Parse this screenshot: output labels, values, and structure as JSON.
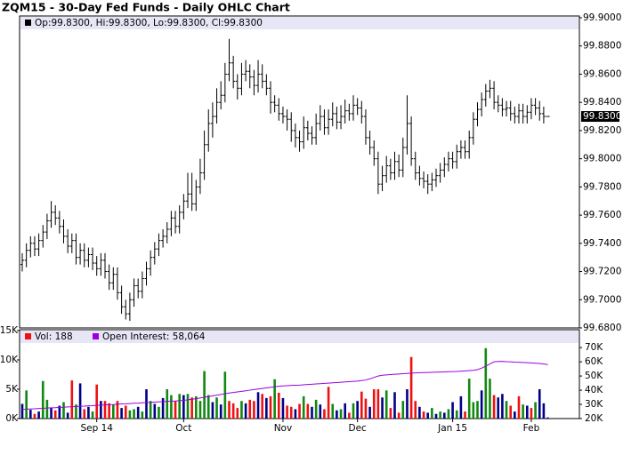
{
  "chart_data": {
    "type": "ohlc",
    "title": "ZQM15 - 30-Day Fed Funds - Daily OHLC Chart",
    "legend_text": "Op:99.8300, Hi:99.8300, Lo:99.8300, Cl:99.8300",
    "color": "#000000",
    "categories": [
      null,
      null,
      null,
      null,
      null,
      null,
      null,
      null,
      null,
      null,
      null,
      null,
      null,
      null,
      null,
      null,
      null,
      null,
      "Sep 14",
      null,
      null,
      null,
      null,
      null,
      null,
      null,
      null,
      null,
      null,
      null,
      null,
      null,
      null,
      null,
      null,
      null,
      null,
      null,
      null,
      "Oct",
      null,
      null,
      null,
      null,
      null,
      null,
      null,
      null,
      null,
      null,
      null,
      null,
      null,
      null,
      null,
      null,
      null,
      null,
      null,
      null,
      null,
      null,
      null,
      "Nov",
      null,
      null,
      null,
      null,
      null,
      null,
      null,
      null,
      null,
      null,
      null,
      null,
      null,
      null,
      null,
      null,
      null,
      "Dec",
      null,
      null,
      null,
      null,
      null,
      null,
      null,
      null,
      null,
      null,
      null,
      null,
      null,
      null,
      null,
      null,
      null,
      null,
      null,
      null,
      null,
      null,
      "Jan 15",
      null,
      null,
      null,
      null,
      null,
      null,
      null,
      null,
      null,
      null,
      null,
      null,
      null,
      null,
      null,
      null,
      null,
      null,
      "Feb",
      null,
      null,
      null,
      null
    ],
    "open": [
      99.725,
      99.728,
      99.735,
      99.74,
      99.736,
      99.742,
      99.748,
      99.756,
      99.762,
      99.758,
      99.752,
      99.745,
      99.738,
      99.742,
      99.73,
      99.735,
      99.728,
      99.732,
      99.726,
      99.722,
      99.728,
      99.72,
      99.712,
      99.718,
      99.705,
      99.695,
      99.69,
      99.7,
      99.71,
      99.706,
      99.715,
      99.722,
      99.73,
      99.736,
      99.742,
      99.745,
      99.75,
      99.758,
      99.752,
      99.762,
      99.77,
      99.775,
      99.768,
      99.78,
      99.79,
      99.81,
      99.825,
      99.83,
      99.84,
      99.845,
      99.86,
      99.868,
      99.855,
      99.85,
      99.86,
      99.862,
      99.858,
      99.852,
      99.86,
      99.855,
      99.85,
      99.84,
      99.838,
      99.832,
      99.83,
      99.828,
      99.82,
      99.815,
      99.812,
      99.822,
      99.818,
      99.815,
      99.825,
      99.83,
      99.822,
      99.828,
      99.832,
      99.826,
      99.83,
      99.834,
      99.832,
      99.838,
      99.836,
      99.83,
      99.815,
      99.808,
      99.8,
      99.782,
      99.788,
      99.795,
      99.79,
      99.798,
      99.792,
      99.808,
      99.825,
      99.8,
      99.79,
      99.786,
      99.784,
      99.782,
      99.785,
      99.788,
      99.792,
      99.796,
      99.8,
      99.798,
      99.805,
      99.808,
      99.805,
      99.815,
      99.828,
      99.835,
      99.842,
      99.848,
      99.85,
      99.84,
      99.838,
      99.835,
      99.836,
      99.832,
      99.83,
      99.834,
      99.83,
      99.833,
      99.838,
      99.836,
      99.832,
      99.83
    ],
    "high": [
      99.733,
      99.74,
      99.745,
      99.745,
      99.747,
      99.753,
      99.761,
      99.77,
      99.767,
      99.763,
      99.757,
      99.75,
      99.747,
      99.747,
      99.74,
      99.74,
      99.737,
      99.737,
      99.731,
      99.733,
      99.733,
      99.725,
      99.723,
      99.723,
      99.71,
      99.7,
      99.705,
      99.715,
      99.715,
      99.72,
      99.727,
      99.735,
      99.741,
      99.747,
      99.75,
      99.755,
      99.763,
      99.763,
      99.767,
      99.775,
      99.79,
      99.79,
      99.785,
      99.8,
      99.82,
      99.835,
      99.84,
      99.85,
      99.855,
      99.868,
      99.885,
      99.873,
      99.86,
      99.868,
      99.87,
      99.867,
      99.863,
      99.87,
      99.867,
      99.86,
      99.855,
      99.845,
      99.843,
      99.837,
      99.835,
      99.833,
      99.825,
      99.82,
      99.83,
      99.827,
      99.823,
      99.832,
      99.838,
      99.835,
      99.835,
      99.84,
      99.837,
      99.838,
      99.842,
      99.839,
      99.845,
      99.843,
      99.841,
      99.835,
      99.82,
      99.813,
      99.805,
      99.795,
      99.802,
      99.8,
      99.805,
      99.803,
      99.815,
      99.845,
      99.83,
      99.805,
      99.795,
      99.791,
      99.789,
      99.79,
      99.793,
      99.797,
      99.801,
      99.805,
      99.805,
      99.81,
      99.813,
      99.813,
      99.82,
      99.833,
      99.84,
      99.847,
      99.853,
      99.856,
      99.855,
      99.845,
      99.843,
      99.841,
      99.841,
      99.837,
      99.839,
      99.839,
      99.838,
      99.843,
      99.843,
      99.841,
      99.837,
      99.83
    ],
    "low": [
      99.72,
      99.723,
      99.73,
      99.731,
      99.731,
      99.737,
      99.743,
      99.751,
      99.753,
      99.747,
      99.74,
      99.733,
      99.733,
      99.725,
      99.725,
      99.723,
      99.723,
      99.721,
      99.717,
      99.717,
      99.715,
      99.707,
      99.707,
      99.7,
      99.69,
      99.686,
      99.685,
      99.695,
      99.701,
      99.701,
      99.71,
      99.717,
      99.725,
      99.731,
      99.737,
      99.74,
      99.745,
      99.747,
      99.747,
      99.757,
      99.765,
      99.763,
      99.763,
      99.775,
      99.785,
      99.805,
      99.815,
      99.825,
      99.835,
      99.84,
      99.855,
      99.85,
      99.842,
      99.845,
      99.855,
      99.85,
      99.845,
      99.847,
      99.85,
      99.845,
      99.832,
      99.833,
      99.827,
      99.825,
      99.82,
      99.812,
      99.808,
      99.805,
      99.807,
      99.813,
      99.81,
      99.81,
      99.82,
      99.817,
      99.817,
      99.823,
      99.821,
      99.821,
      99.825,
      99.827,
      99.827,
      99.831,
      99.825,
      99.81,
      99.803,
      99.795,
      99.775,
      99.777,
      99.783,
      99.785,
      99.785,
      99.787,
      99.787,
      99.803,
      99.795,
      99.785,
      99.781,
      99.779,
      99.775,
      99.777,
      99.78,
      99.783,
      99.787,
      99.791,
      99.793,
      99.793,
      99.8,
      99.8,
      99.8,
      99.81,
      99.823,
      99.83,
      99.837,
      99.843,
      99.835,
      99.833,
      99.83,
      99.83,
      99.827,
      99.825,
      99.825,
      99.825,
      99.825,
      99.828,
      99.831,
      99.827,
      99.825,
      99.83
    ],
    "close": [
      99.728,
      99.735,
      99.74,
      99.736,
      99.742,
      99.748,
      99.756,
      99.762,
      99.758,
      99.752,
      99.745,
      99.738,
      99.742,
      99.73,
      99.735,
      99.728,
      99.732,
      99.726,
      99.722,
      99.728,
      99.72,
      99.712,
      99.718,
      99.705,
      99.695,
      99.69,
      99.7,
      99.71,
      99.706,
      99.715,
      99.722,
      99.73,
      99.736,
      99.742,
      99.745,
      99.75,
      99.758,
      99.752,
      99.762,
      99.77,
      99.775,
      99.768,
      99.78,
      99.79,
      99.81,
      99.825,
      99.83,
      99.84,
      99.845,
      99.86,
      99.868,
      99.855,
      99.85,
      99.86,
      99.862,
      99.858,
      99.852,
      99.86,
      99.855,
      99.85,
      99.84,
      99.838,
      99.832,
      99.83,
      99.828,
      99.82,
      99.815,
      99.812,
      99.822,
      99.818,
      99.815,
      99.825,
      99.83,
      99.822,
      99.828,
      99.832,
      99.826,
      99.83,
      99.834,
      99.832,
      99.838,
      99.836,
      99.83,
      99.815,
      99.808,
      99.8,
      99.782,
      99.788,
      99.795,
      99.79,
      99.798,
      99.792,
      99.808,
      99.825,
      99.8,
      99.79,
      99.786,
      99.784,
      99.782,
      99.785,
      99.788,
      99.792,
      99.796,
      99.8,
      99.798,
      99.805,
      99.808,
      99.805,
      99.815,
      99.828,
      99.835,
      99.842,
      99.848,
      99.85,
      99.84,
      99.838,
      99.835,
      99.836,
      99.832,
      99.83,
      99.834,
      99.83,
      99.833,
      99.838,
      99.836,
      99.832,
      99.83,
      99.83
    ],
    "ylim": [
      99.68,
      99.9
    ],
    "yticks": [
      {
        "value": 99.68,
        "label": "99.6800"
      },
      {
        "value": 99.7,
        "label": "99.7000"
      },
      {
        "value": 99.72,
        "label": "99.7200"
      },
      {
        "value": 99.74,
        "label": "99.7400"
      },
      {
        "value": 99.76,
        "label": "99.7600"
      },
      {
        "value": 99.78,
        "label": "99.7800"
      },
      {
        "value": 99.8,
        "label": "99.8000"
      },
      {
        "value": 99.82,
        "label": "99.8200"
      },
      {
        "value": 99.84,
        "label": "99.8400"
      },
      {
        "value": 99.86,
        "label": "99.8600"
      },
      {
        "value": 99.88,
        "label": "99.8800"
      },
      {
        "value": 99.9,
        "label": "99.9000"
      }
    ],
    "last_price": {
      "value": 99.83,
      "label": "99.8300"
    },
    "grid": false,
    "volume": {
      "legend": "Vol: 188",
      "legend_color": "#ee1111",
      "values": [
        2500,
        4800,
        1500,
        800,
        1200,
        6400,
        3200,
        1800,
        1400,
        2200,
        2800,
        1000,
        6500,
        2400,
        6000,
        1600,
        2000,
        1200,
        5800,
        3000,
        3000,
        2600,
        2400,
        3000,
        1800,
        2200,
        1400,
        1600,
        2000,
        1200,
        5000,
        3000,
        2500,
        2000,
        3500,
        5000,
        4000,
        3000,
        4200,
        4000,
        4200,
        3600,
        3800,
        3000,
        8100,
        4000,
        2800,
        3600,
        2400,
        8000,
        3000,
        2600,
        1800,
        3000,
        2600,
        3200,
        3000,
        4500,
        4200,
        3500,
        3800,
        6700,
        4400,
        3500,
        2200,
        2000,
        1600,
        2500,
        3800,
        2500,
        2000,
        3200,
        2400,
        1600,
        5400,
        2500,
        1400,
        1600,
        2600,
        1000,
        2600,
        3000,
        4600,
        3400,
        2000,
        5000,
        5000,
        3600,
        4800,
        1800,
        4500,
        1000,
        3000,
        5000,
        10500,
        3000,
        2000,
        1200,
        1000,
        1800,
        800,
        1200,
        1000,
        1600,
        2800,
        1400,
        3800,
        1200,
        6800,
        2800,
        3000,
        4800,
        12000,
        6800,
        4000,
        3600,
        4200,
        3000,
        2200,
        1200,
        3800,
        2400,
        2200,
        1800,
        2800,
        5000,
        2600,
        188
      ],
      "colors": [
        "#000088",
        "#118811",
        "#000088",
        "#ee1111",
        "#000088",
        "#118811",
        "#118811",
        "#000088",
        "#ee1111",
        "#000088",
        "#118811",
        "#000088",
        "#ee1111",
        "#118811",
        "#000088",
        "#ee1111",
        "#000088",
        "#118811",
        "#ee1111",
        "#000088",
        "#ee1111",
        "#ee1111",
        "#118811",
        "#ee1111",
        "#000088",
        "#ee1111",
        "#118811",
        "#118811",
        "#000088",
        "#118811",
        "#000088",
        "#118811",
        "#000088",
        "#118811",
        "#000088",
        "#118811",
        "#118811",
        "#ee1111",
        "#118811",
        "#000088",
        "#118811",
        "#ee1111",
        "#118811",
        "#118811",
        "#118811",
        "#118811",
        "#000088",
        "#118811",
        "#000088",
        "#118811",
        "#ee1111",
        "#ee1111",
        "#ee1111",
        "#118811",
        "#000088",
        "#ee1111",
        "#ee1111",
        "#000088",
        "#ee1111",
        "#000088",
        "#ee1111",
        "#118811",
        "#ee1111",
        "#000088",
        "#ee1111",
        "#ee1111",
        "#000088",
        "#ee1111",
        "#118811",
        "#ee1111",
        "#000088",
        "#118811",
        "#000088",
        "#ee1111",
        "#ee1111",
        "#118811",
        "#000088",
        "#118811",
        "#000088",
        "#ee1111",
        "#118811",
        "#000088",
        "#ee1111",
        "#ee1111",
        "#000088",
        "#ee1111",
        "#ee1111",
        "#000088",
        "#118811",
        "#ee1111",
        "#000088",
        "#ee1111",
        "#118811",
        "#000088",
        "#ee1111",
        "#ee1111",
        "#000088",
        "#ee1111",
        "#000088",
        "#118811",
        "#000088",
        "#118811",
        "#000088",
        "#118811",
        "#000088",
        "#118811",
        "#000088",
        "#ee1111",
        "#118811",
        "#118811",
        "#118811",
        "#000088",
        "#118811",
        "#118811",
        "#ee1111",
        "#000088",
        "#000088",
        "#118811",
        "#ee1111",
        "#000088",
        "#ee1111",
        "#118811",
        "#000088",
        "#ee1111",
        "#118811",
        "#000088",
        "#000088",
        "#000088"
      ],
      "ylim": [
        0,
        15000
      ],
      "yticks": [
        {
          "value": 0,
          "label": "0K"
        },
        {
          "value": 5000,
          "label": "5K"
        },
        {
          "value": 10000,
          "label": "10K"
        },
        {
          "value": 15000,
          "label": "15K"
        }
      ]
    },
    "open_interest": {
      "legend": "Open Interest: 58,064",
      "color": "#9900dd",
      "values": [
        26500,
        26600,
        26800,
        26900,
        27100,
        27200,
        27400,
        27600,
        27700,
        27900,
        28000,
        28200,
        28300,
        28500,
        28700,
        28800,
        29000,
        29100,
        29300,
        29500,
        29600,
        29800,
        29900,
        30100,
        30300,
        30400,
        30600,
        30800,
        30900,
        31100,
        31300,
        31400,
        31600,
        31800,
        31900,
        32100,
        32300,
        32400,
        32600,
        32800,
        33200,
        33600,
        34000,
        34500,
        35000,
        35500,
        36000,
        36500,
        37000,
        37500,
        38000,
        38400,
        38800,
        39200,
        39600,
        40000,
        40400,
        40800,
        41200,
        41600,
        42000,
        42400,
        42800,
        43000,
        43200,
        43400,
        43500,
        43600,
        43800,
        44000,
        44200,
        44400,
        44600,
        44800,
        45000,
        45200,
        45400,
        45600,
        45800,
        46000,
        46200,
        46400,
        46800,
        47200,
        48000,
        49000,
        50000,
        50500,
        50800,
        51000,
        51200,
        51400,
        51600,
        51800,
        52000,
        52200,
        52300,
        52400,
        52500,
        52600,
        52700,
        52800,
        52900,
        53000,
        53100,
        53200,
        53400,
        53600,
        53800,
        54000,
        54500,
        55500,
        57000,
        58500,
        60000,
        60200,
        60300,
        60100,
        60000,
        59800,
        59700,
        59500,
        59400,
        59200,
        59000,
        58800,
        58400,
        58064
      ],
      "ylim": [
        20000,
        82000
      ],
      "yticks": [
        {
          "value": 20000,
          "label": "20K"
        },
        {
          "value": 30000,
          "label": "30K"
        },
        {
          "value": 40000,
          "label": "40K"
        },
        {
          "value": 50000,
          "label": "50K"
        },
        {
          "value": 60000,
          "label": "60K"
        },
        {
          "value": 70000,
          "label": "70K"
        }
      ]
    }
  }
}
